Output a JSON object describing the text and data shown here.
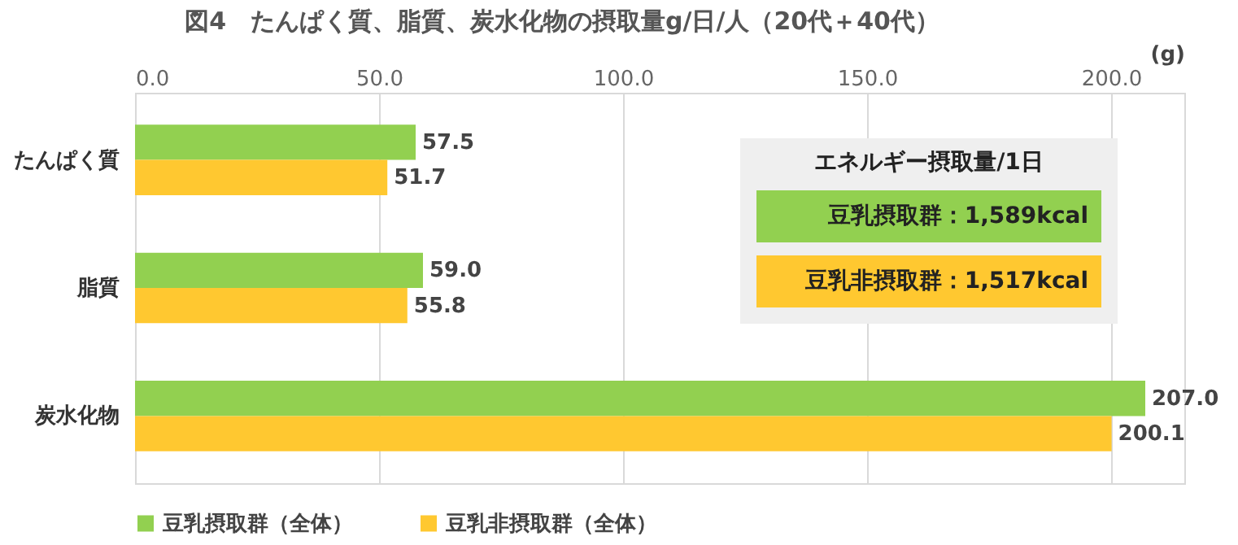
{
  "chart_data": {
    "type": "bar",
    "orientation": "horizontal",
    "title": "図4　たんぱく質、脂質、炭水化物の摂取量g/日/人（20代＋40代）",
    "xlabel": "(g)",
    "categories": [
      "たんぱく質",
      "脂質",
      "炭水化物"
    ],
    "series": [
      {
        "name": "豆乳摂取群（全体）",
        "color": "#92d050",
        "values": [
          57.5,
          59.0,
          207.0
        ],
        "value_labels": [
          "57.5",
          "59.0",
          "207.0"
        ]
      },
      {
        "name": "豆乳非摂取群（全体）",
        "color": "#ffc830",
        "values": [
          51.7,
          55.8,
          200.1
        ],
        "value_labels": [
          "51.7",
          "55.8",
          "200.1"
        ]
      }
    ],
    "xlim": [
      0,
      215
    ],
    "xticks": [
      {
        "value": 0,
        "label": "0.0"
      },
      {
        "value": 50,
        "label": "50.0"
      },
      {
        "value": 100,
        "label": "100.0"
      },
      {
        "value": 150,
        "label": "150.0"
      },
      {
        "value": 200,
        "label": "200.0"
      }
    ],
    "grid": "x",
    "legend": "bottom",
    "annotations": [
      "エネルギー摂取量/1日",
      "豆乳摂取群：1,589kcal",
      "豆乳非摂取群：1,517kcal"
    ]
  }
}
